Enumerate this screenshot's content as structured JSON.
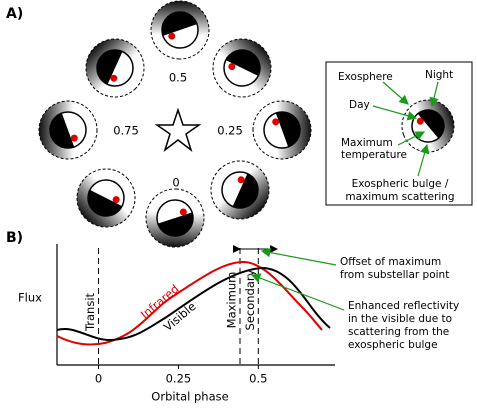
{
  "panel_a": {
    "label": "A)",
    "phases": [
      "0.5",
      "0.75",
      "0.25",
      "0"
    ],
    "inset": {
      "exosphere": "Exosphere",
      "night": "Night",
      "day": "Day",
      "maximum_temperature": [
        "Maximum",
        "temperature"
      ],
      "exospheric_bulge": [
        "Exospheric bulge /",
        "maximum scattering"
      ]
    }
  },
  "panel_b": {
    "label": "B)",
    "y_label": "Flux",
    "x_label": "Orbital phase",
    "xlim": [
      -0.13,
      0.74
    ],
    "xticks": [
      0,
      0.25,
      0.5
    ],
    "line_labels": {
      "transit": "Transit",
      "maximum": "Maximum",
      "secondary": "Secondary"
    },
    "curve_labels": {
      "infrared": "Infrared",
      "visible": "Visible"
    },
    "annotations": {
      "offset": [
        "Offset of maximum",
        "from substellar point"
      ],
      "enhanced": [
        "Enhanced reflectivity",
        "in the visible due to",
        "scattering from the",
        "exospheric bulge"
      ]
    }
  }
}
